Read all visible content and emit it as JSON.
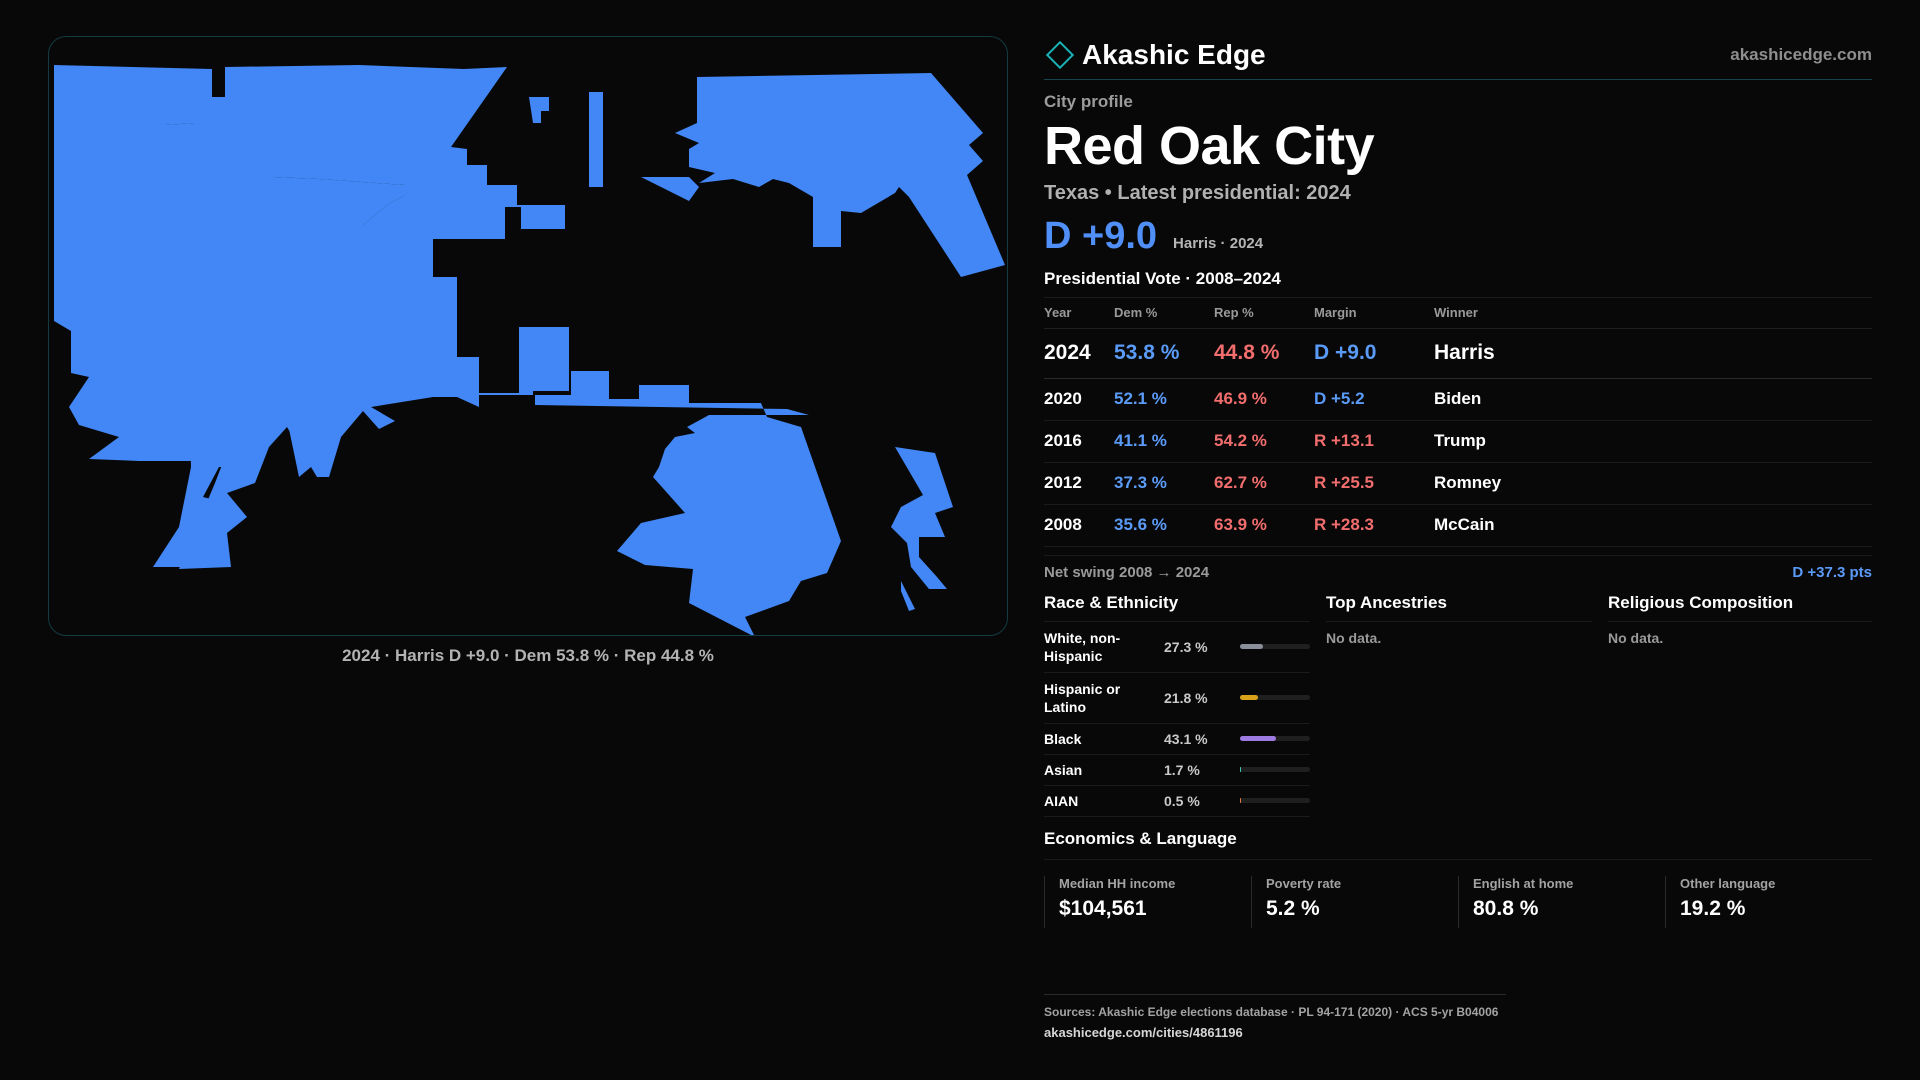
{
  "map": {
    "caption": "2024 · Harris D +9.0 · Dem 53.8 % · Rep 44.8 %",
    "fill_color": "#4287f5"
  },
  "brand": {
    "icon": "diamond-icon",
    "name": "Akashic Edge",
    "url": "akashicedge.com"
  },
  "profile": {
    "eyebrow": "City profile",
    "city": "Red Oak City",
    "state": "Texas",
    "latest_label": "Latest presidential: 2024",
    "headline_margin": "D +9.0",
    "headline_note": "Harris · 2024"
  },
  "presidential": {
    "title": "Presidential Vote · 2008–2024",
    "columns": [
      "Year",
      "Dem %",
      "Rep %",
      "Margin",
      "Winner"
    ],
    "rows": [
      {
        "year": "2024",
        "dem": "53.8 %",
        "rep": "44.8 %",
        "margin": "D +9.0",
        "party": "dem",
        "winner": "Harris"
      },
      {
        "year": "2020",
        "dem": "52.1 %",
        "rep": "46.9 %",
        "margin": "D +5.2",
        "party": "dem",
        "winner": "Biden"
      },
      {
        "year": "2016",
        "dem": "41.1 %",
        "rep": "54.2 %",
        "margin": "R +13.1",
        "party": "rep",
        "winner": "Trump"
      },
      {
        "year": "2012",
        "dem": "37.3 %",
        "rep": "62.7 %",
        "margin": "R +25.5",
        "party": "rep",
        "winner": "Romney"
      },
      {
        "year": "2008",
        "dem": "35.6 %",
        "rep": "63.9 %",
        "margin": "R +28.3",
        "party": "rep",
        "winner": "McCain"
      }
    ],
    "swing_label": "Net swing 2008 → 2024",
    "swing_value": "D +37.3 pts"
  },
  "race": {
    "title": "Race & Ethnicity",
    "rows": [
      {
        "label": "White, non-Hispanic",
        "value": "27.3 %",
        "pct": 27.3,
        "color": "#8a8f99"
      },
      {
        "label": "Hispanic or Latino",
        "value": "21.8 %",
        "pct": 21.8,
        "color": "#d9a21b"
      },
      {
        "label": "Black",
        "value": "43.1 %",
        "pct": 43.1,
        "color": "#9d7be0"
      },
      {
        "label": "Asian",
        "value": "1.7 %",
        "pct": 1.7,
        "color": "#3fc7b0"
      },
      {
        "label": "AIAN",
        "value": "0.5 %",
        "pct": 0.5,
        "color": "#e07a3f"
      }
    ]
  },
  "ancestries": {
    "title": "Top Ancestries",
    "empty": "No data."
  },
  "religion": {
    "title": "Religious Composition",
    "empty": "No data."
  },
  "economics": {
    "title": "Economics & Language",
    "cards": [
      {
        "label": "Median HH income",
        "value": "$104,561"
      },
      {
        "label": "Poverty rate",
        "value": "5.2 %"
      },
      {
        "label": "English at home",
        "value": "80.8 %"
      },
      {
        "label": "Other language",
        "value": "19.2 %"
      }
    ]
  },
  "sources": {
    "line": "Sources: Akashic Edge elections database · PL 94-171 (2020) · ACS 5-yr B04006",
    "link": "akashicedge.com/cities/4861196"
  }
}
